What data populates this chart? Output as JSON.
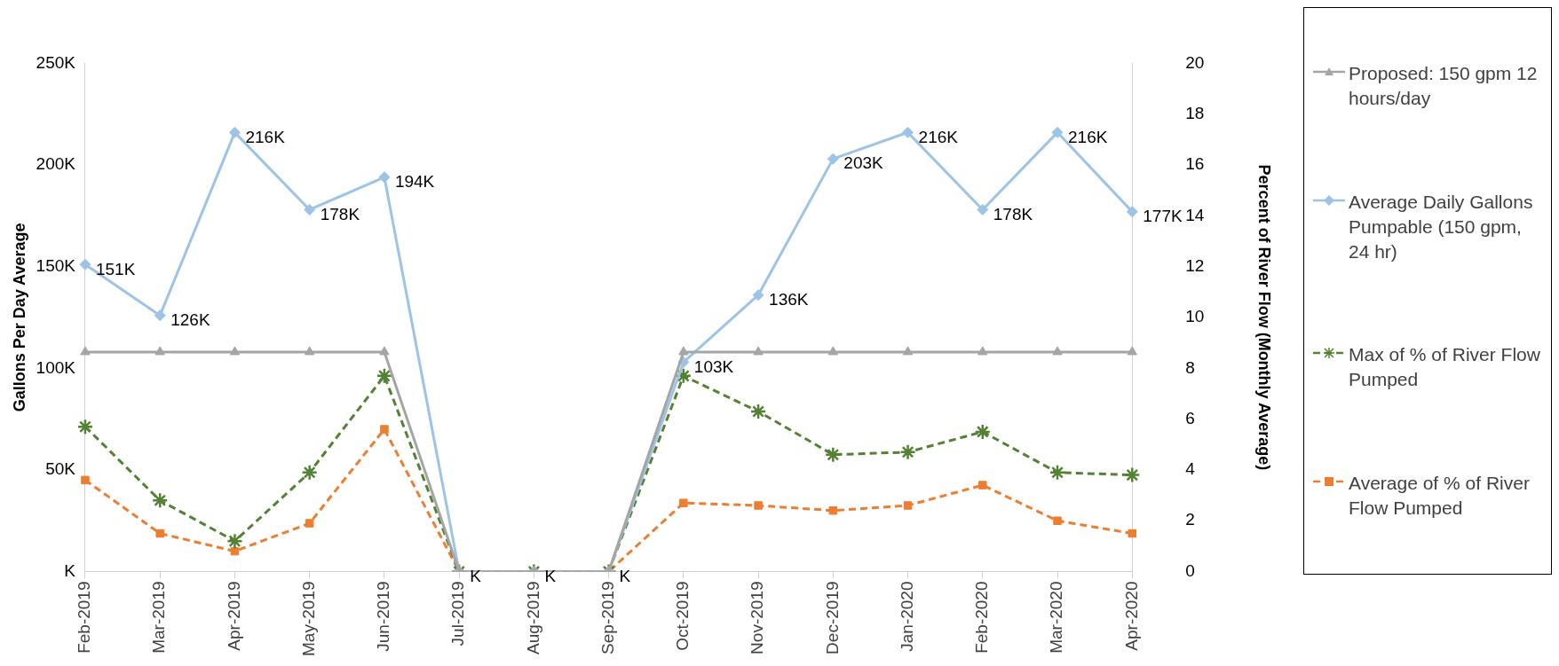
{
  "chart_data": {
    "type": "line",
    "ylabel": "Gallons Per Day Average",
    "y2label": "Percent of River Flow (Monthly Average)",
    "categories": [
      "Feb-2019",
      "Mar-2019",
      "Apr-2019",
      "May-2019",
      "Jun-2019",
      "Jul-2019",
      "Aug-2019",
      "Sep-2019",
      "Oct-2019",
      "Nov-2019",
      "Dec-2019",
      "Jan-2020",
      "Feb-2020",
      "Mar-2020",
      "Apr-2020"
    ],
    "ylim": [
      0,
      250000
    ],
    "yticks": [
      {
        "value": 0,
        "label": "K"
      },
      {
        "value": 50000,
        "label": "50K"
      },
      {
        "value": 100000,
        "label": "100K"
      },
      {
        "value": 150000,
        "label": "150K"
      },
      {
        "value": 200000,
        "label": "200K"
      },
      {
        "value": 250000,
        "label": "250K"
      }
    ],
    "y2lim": [
      0,
      20
    ],
    "y2ticks": [
      0,
      2,
      4,
      6,
      8,
      10,
      12,
      14,
      16,
      18,
      20
    ],
    "legend": "right",
    "series": [
      {
        "name": "Proposed: 150 gpm 12 hours/day",
        "color": "#a5a5a5",
        "marker": "triangle",
        "line_style": "solid",
        "values": [
          108000,
          108000,
          108000,
          108000,
          108000,
          0,
          0,
          0,
          108000,
          108000,
          108000,
          108000,
          108000,
          108000,
          108000
        ]
      },
      {
        "name": "Average Daily Gallons Pumpable (150 gpm, 24 hr)",
        "color": "#9dc3e6",
        "marker": "diamond",
        "line_style": "solid",
        "values": [
          151000,
          126000,
          216000,
          178000,
          194000,
          0,
          0,
          0,
          103000,
          136000,
          203000,
          216000,
          178000,
          216000,
          177000
        ],
        "value_labels": [
          "151K",
          "126K",
          "216K",
          "178K",
          "194K",
          "K",
          "K",
          "K",
          "103K",
          "136K",
          "203K",
          "216K",
          "178K",
          "216K",
          "177K"
        ]
      },
      {
        "name": "Max of % of River Flow Pumped",
        "color": "#548235",
        "marker": "cross",
        "line_style": "dashed",
        "axis": "y2",
        "values": [
          5.7,
          2.8,
          1.2,
          3.9,
          7.7,
          0,
          0,
          0,
          7.7,
          6.3,
          4.6,
          4.7,
          5.5,
          3.9,
          3.8
        ]
      },
      {
        "name": "Average of % of River Flow Pumped",
        "color": "#ed7d31",
        "marker": "square",
        "line_style": "dashed",
        "axis": "y2",
        "values": [
          3.6,
          1.5,
          0.8,
          1.9,
          5.6,
          0,
          0,
          0,
          2.7,
          2.6,
          2.4,
          2.6,
          3.4,
          2.0,
          1.5
        ]
      }
    ]
  }
}
